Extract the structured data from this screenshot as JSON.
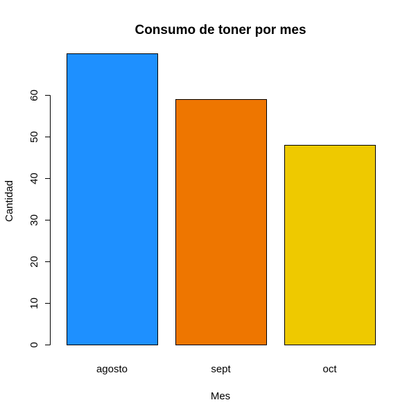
{
  "chart_data": {
    "type": "bar",
    "title": "Consumo de toner por mes",
    "xlabel": "Mes",
    "ylabel": "Cantidad",
    "categories": [
      "agosto",
      "sept",
      "oct"
    ],
    "values": [
      70,
      59,
      48
    ],
    "colors": [
      "#1E90FF",
      "#EE7600",
      "#EEC900"
    ],
    "ylim": [
      0,
      70
    ],
    "yticks": [
      0,
      10,
      20,
      30,
      40,
      50,
      60
    ],
    "grid": false,
    "legend": "none"
  }
}
